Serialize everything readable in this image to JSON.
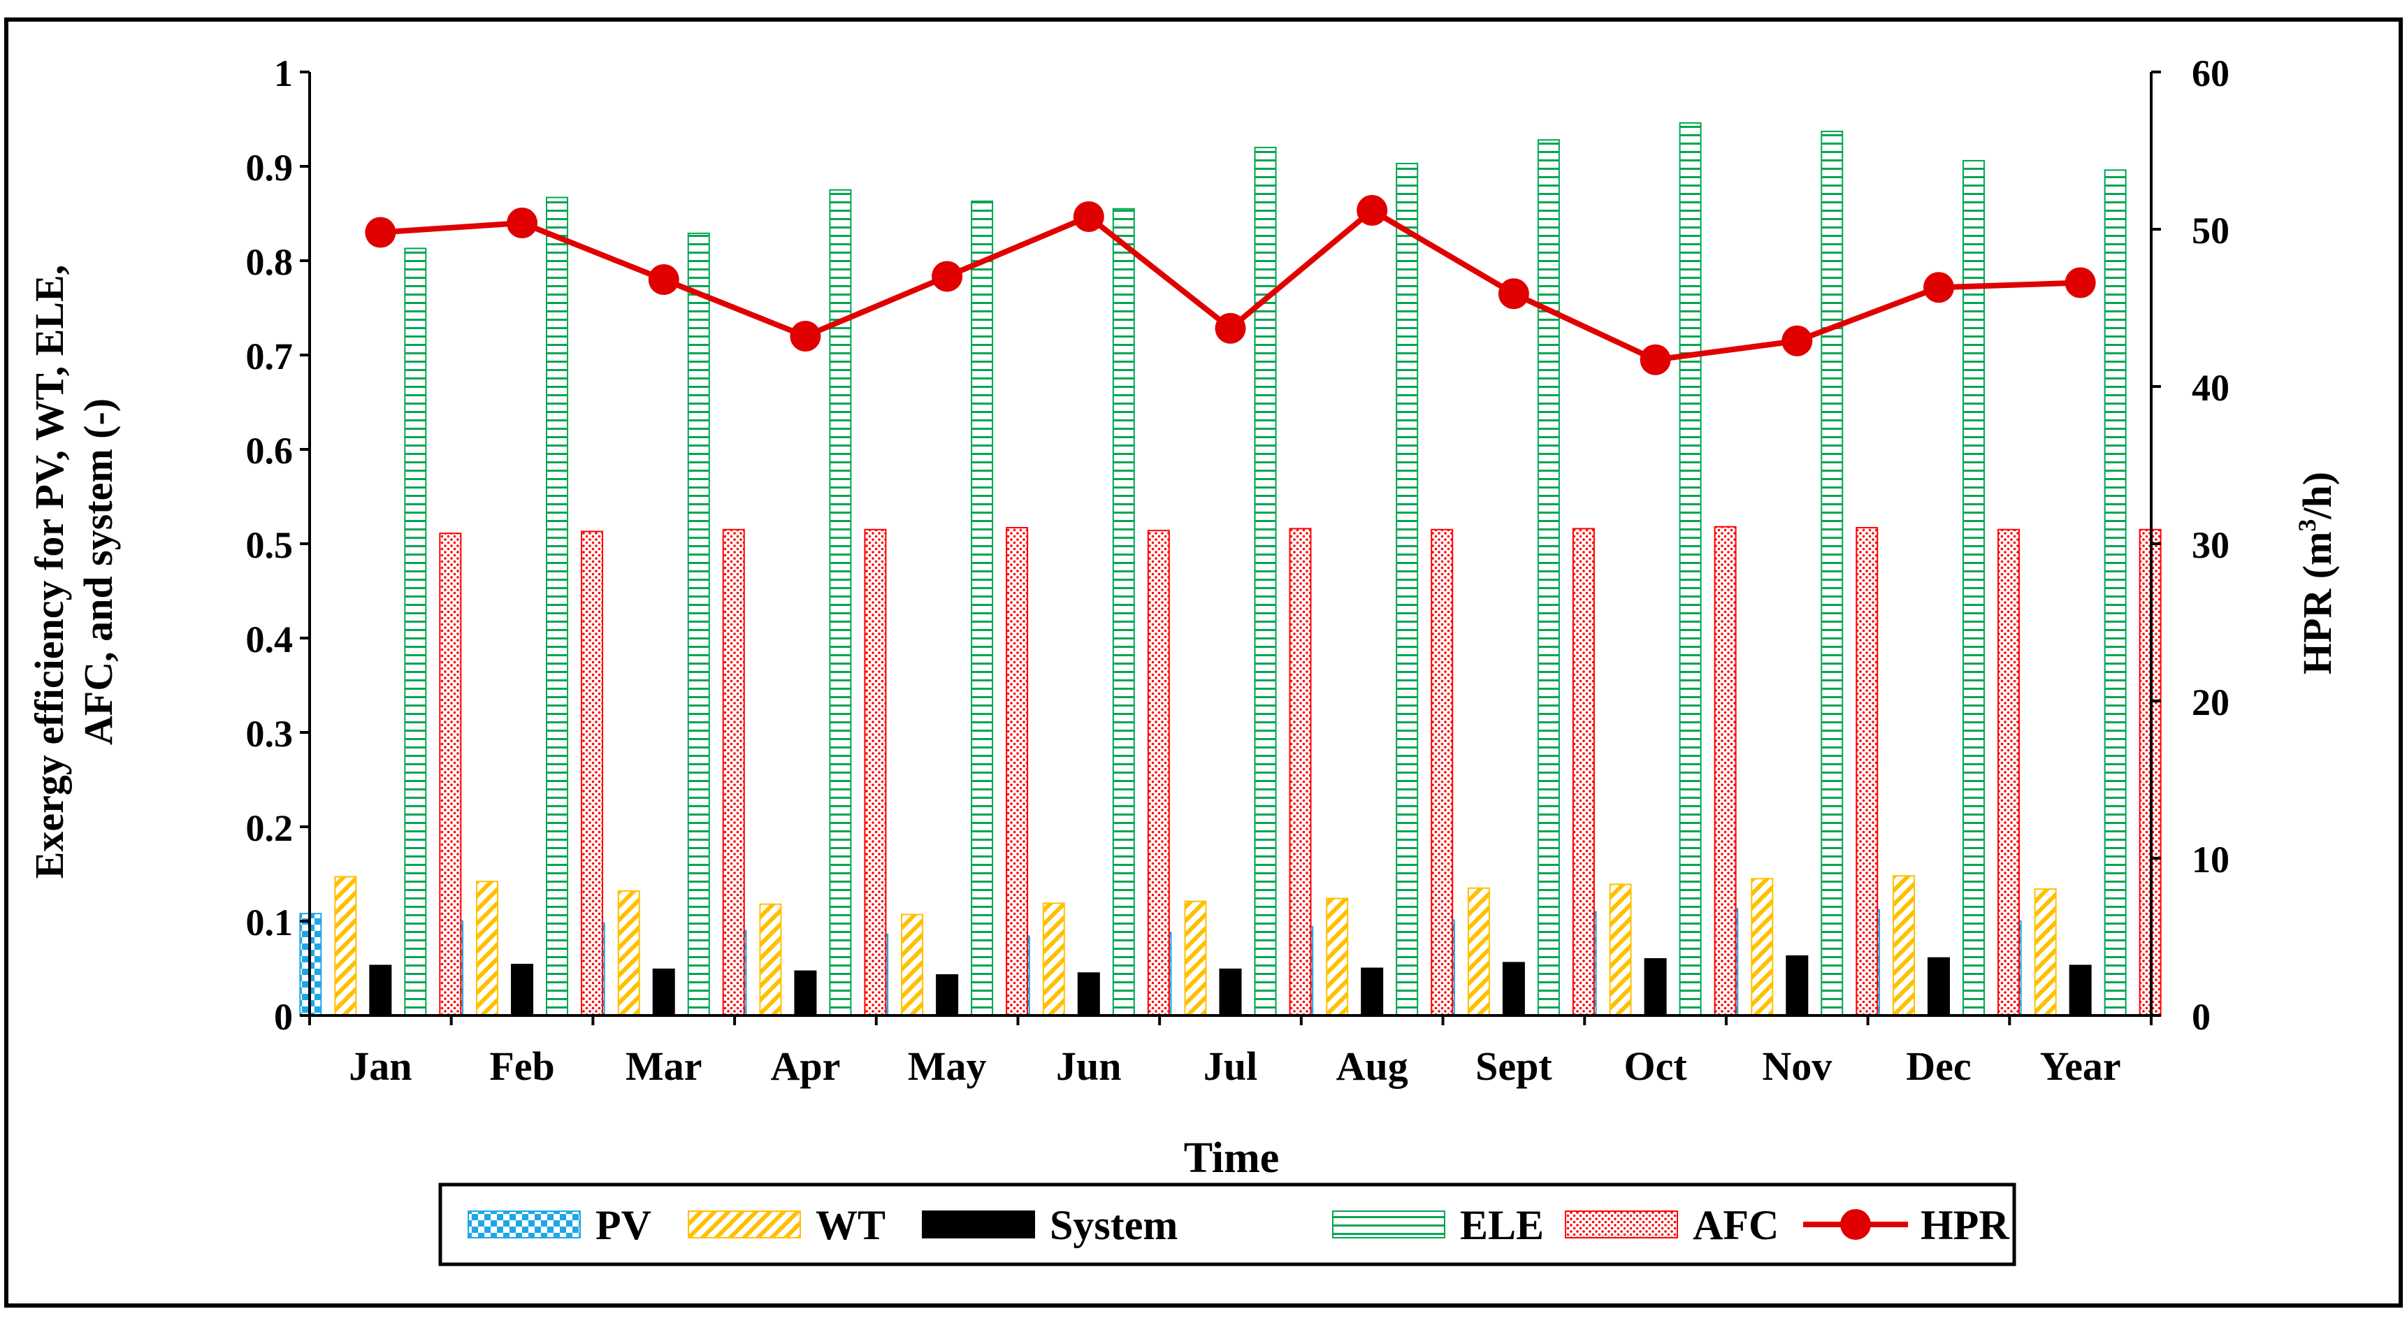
{
  "chart_data": {
    "type": "bar",
    "title": "",
    "xlabel": "Time",
    "ylabel_lines": [
      "Exergy efficiency for PV, WT, ELE,",
      "AFC, and system (-)"
    ],
    "y2label_main": "HPR (m",
    "y2label_sup": "3",
    "y2label_tail": "/h)",
    "categories": [
      "Jan",
      "Feb",
      "Mar",
      "Apr",
      "May",
      "Jun",
      "Jul",
      "Aug",
      "Sept",
      "Oct",
      "Nov",
      "Dec",
      "Year"
    ],
    "ylim": [
      0,
      1
    ],
    "y_ticks": [
      "0",
      "0.1",
      "0.2",
      "0.3",
      "0.4",
      "0.5",
      "0.6",
      "0.7",
      "0.8",
      "0.9",
      "1"
    ],
    "y2lim": [
      0,
      60
    ],
    "y2_ticks": [
      "0",
      "10",
      "20",
      "30",
      "40",
      "50",
      "60"
    ],
    "series": [
      {
        "name": "PV",
        "key": "pv",
        "pattern": "checker",
        "color": "#1ea7e6",
        "values": [
          0.108,
          0.1,
          0.098,
          0.09,
          0.086,
          0.084,
          0.088,
          0.094,
          0.101,
          0.11,
          0.113,
          0.112,
          0.1
        ]
      },
      {
        "name": "WT",
        "key": "wt",
        "pattern": "diagonal",
        "color": "#ffc000",
        "values": [
          0.147,
          0.142,
          0.132,
          0.118,
          0.107,
          0.119,
          0.121,
          0.124,
          0.135,
          0.139,
          0.145,
          0.148,
          0.134
        ]
      },
      {
        "name": "System",
        "key": "sys",
        "pattern": "solid",
        "color": "#000000",
        "values": [
          0.053,
          0.054,
          0.049,
          0.047,
          0.043,
          0.045,
          0.049,
          0.05,
          0.056,
          0.06,
          0.063,
          0.061,
          0.053
        ]
      },
      {
        "name": "ELE",
        "key": "ele",
        "pattern": "hstripe",
        "color": "#00a651",
        "values": [
          0.813,
          0.867,
          0.829,
          0.875,
          0.863,
          0.855,
          0.92,
          0.903,
          0.928,
          0.946,
          0.937,
          0.906,
          0.896
        ]
      },
      {
        "name": "AFC",
        "key": "afc",
        "pattern": "dots",
        "color": "#ff0000",
        "values": [
          0.511,
          0.513,
          0.515,
          0.515,
          0.517,
          0.514,
          0.516,
          0.515,
          0.516,
          0.518,
          0.517,
          0.515,
          0.515
        ]
      }
    ],
    "line_series": {
      "name": "HPR",
      "axis": "right",
      "color": "#e00000",
      "values": [
        49.8,
        50.4,
        46.8,
        43.2,
        47.0,
        50.8,
        43.7,
        51.2,
        45.9,
        41.7,
        42.9,
        46.3,
        46.6
      ]
    },
    "legend": {
      "position": "bottom",
      "items": [
        "PV",
        "WT",
        "System",
        "ELE",
        "AFC",
        "HPR"
      ]
    }
  }
}
